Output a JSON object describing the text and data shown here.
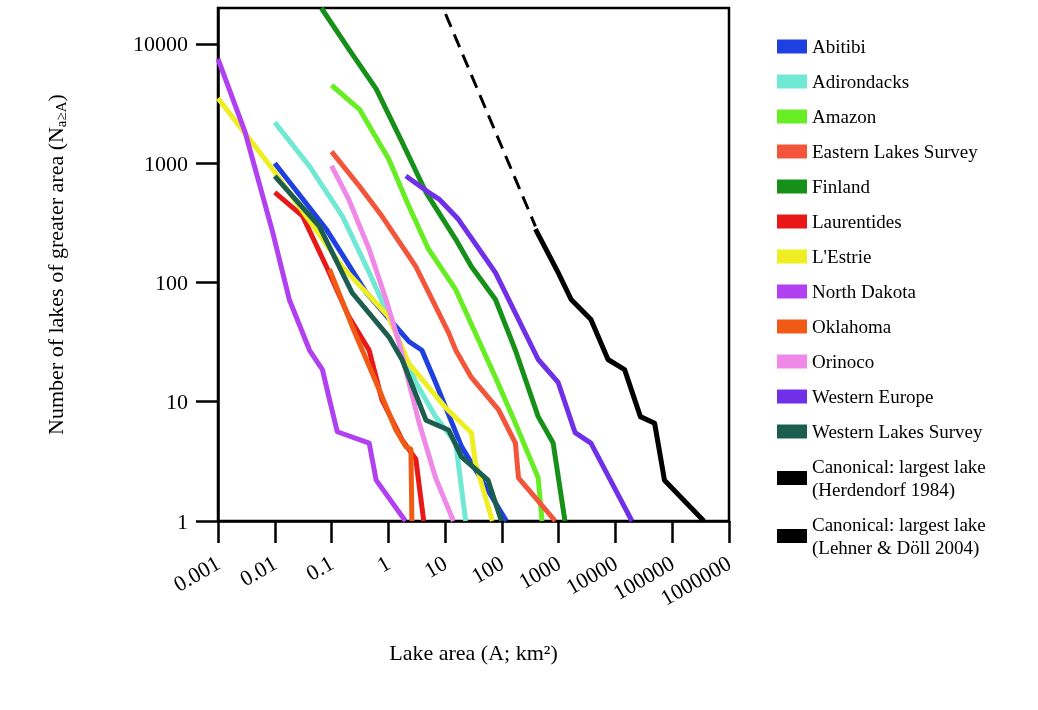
{
  "chart_data": {
    "type": "line",
    "xlabel": "Lake area (A; km²)",
    "ylabel": "Number of lakes of greater area (N$_{a≥A}$)",
    "log": "xy",
    "xlim": [
      0.001,
      1000000
    ],
    "xticks": [
      0.001,
      0.01,
      0.1,
      1,
      10,
      100,
      1000,
      10000,
      100000,
      1000000
    ],
    "ylim": [
      1,
      20000
    ],
    "yticks": [
      1,
      10,
      100,
      1000,
      10000
    ],
    "grid": false,
    "legend": "right",
    "marker": "none",
    "line_style": "solid",
    "series": [
      {
        "name": "Abitibi",
        "color": "#1f3fe0",
        "x": [
          0.01,
          0.081,
          0.41,
          2.3,
          3.9,
          6.8,
          19.5,
          57,
          120
        ],
        "values": [
          1000,
          279,
          82,
          32,
          27,
          14.5,
          4.2,
          1.8,
          1
        ]
      },
      {
        "name": "Adirondacks",
        "color": "#6fe8d4",
        "x": [
          0.01,
          0.041,
          0.155,
          0.46,
          1.36,
          3.05,
          6.8,
          15.4,
          23
        ],
        "values": [
          2200,
          940,
          360,
          121,
          38,
          14.5,
          7.5,
          4.5,
          1
        ]
      },
      {
        "name": "Amazon",
        "color": "#66ee22",
        "x": [
          0.1,
          0.31,
          1.02,
          2.3,
          5.1,
          15.4,
          77,
          173,
          436,
          510
        ],
        "values": [
          4500,
          2830,
          1080,
          435,
          190,
          87,
          16,
          6.6,
          2.3,
          1
        ]
      },
      {
        "name": "Eastern Lakes Survey",
        "color": "#f2553a",
        "x": [
          0.1,
          0.31,
          0.77,
          3.05,
          11.5,
          15.4,
          29,
          87,
          173,
          196,
          870
        ],
        "values": [
          1250,
          640,
          360,
          136,
          38,
          27,
          16,
          8.6,
          4.5,
          2.3,
          1
        ]
      },
      {
        "name": "Finland",
        "color": "#17901a",
        "x": [
          0.066,
          0.2,
          0.61,
          1.74,
          4.6,
          15.4,
          29,
          77,
          173,
          436,
          800,
          1290
        ],
        "values": [
          20000,
          9100,
          4200,
          1510,
          570,
          230,
          136,
          72,
          27,
          7.5,
          4.5,
          1
        ]
      },
      {
        "name": "Laurentides",
        "color": "#e81818",
        "x": [
          0.01,
          0.031,
          0.081,
          0.2,
          0.46,
          0.77,
          1.74,
          3.05,
          4.2
        ],
        "values": [
          570,
          360,
          136,
          52,
          27,
          10.4,
          4.8,
          3.3,
          1
        ]
      },
      {
        "name": "L'Estrie",
        "color": "#eeee22",
        "x": [
          0.001,
          0.0092,
          0.155,
          1,
          2.3,
          10,
          29,
          34,
          68
        ],
        "values": [
          3500,
          890,
          135,
          52,
          21,
          9,
          5.5,
          3.1,
          1
        ]
      },
      {
        "name": "North Dakota",
        "color": "#b040f0",
        "x": [
          0.001,
          0.003,
          0.0092,
          0.018,
          0.041,
          0.069,
          0.092,
          0.126,
          0.46,
          0.61,
          2
        ],
        "values": [
          7500,
          1820,
          263,
          72,
          27,
          18.6,
          10.4,
          5.6,
          4.5,
          2.2,
          1
        ]
      },
      {
        "name": "Oklahoma",
        "color": "#f05a14",
        "x": [
          0.092,
          0.23,
          0.61,
          1.36,
          2.04,
          2.5,
          2.6
        ],
        "values": [
          129,
          43,
          14.5,
          5.8,
          4.2,
          4,
          1
        ]
      },
      {
        "name": "Orinoco",
        "color": "#f088e8",
        "x": [
          0.1,
          0.2,
          0.46,
          0.91,
          1.55,
          2.3,
          3.5,
          6.8,
          14
        ],
        "values": [
          950,
          500,
          190,
          72,
          31,
          14.5,
          6.6,
          2.3,
          1
        ]
      },
      {
        "name": "Western Europe",
        "color": "#7030e8",
        "x": [
          2.04,
          5.1,
          7.8,
          17,
          77,
          436,
          980,
          1950,
          3700,
          19500
        ],
        "values": [
          780,
          570,
          500,
          340,
          121,
          22.6,
          14.5,
          5.5,
          4.5,
          1
        ]
      },
      {
        "name": "Western Lakes Survey",
        "color": "#1b5e50",
        "x": [
          0.01,
          0.061,
          0.23,
          1.02,
          1.74,
          4.6,
          11.5,
          19.5,
          57,
          98
        ],
        "values": [
          780,
          295,
          82,
          35,
          22.6,
          7,
          5.8,
          3.45,
          2.2,
          1
        ]
      },
      {
        "name": "Canonical: largest lake (Herdendorf 1984)",
        "color": "#000000",
        "x": [
          390,
          980,
          1660,
          3700,
          7400,
          14500,
          27500,
          49000,
          73000,
          360000
        ],
        "values": [
          280,
          121,
          72,
          49,
          22.6,
          18.6,
          7.5,
          6.6,
          2.2,
          1
        ]
      },
      {
        "name": "Canonical: largest lake (Lehner & Döll 2004)",
        "color": "#000000",
        "line_style": "dashed",
        "x": [
          10.2,
          390
        ],
        "values": [
          17800,
          295
        ]
      }
    ]
  }
}
